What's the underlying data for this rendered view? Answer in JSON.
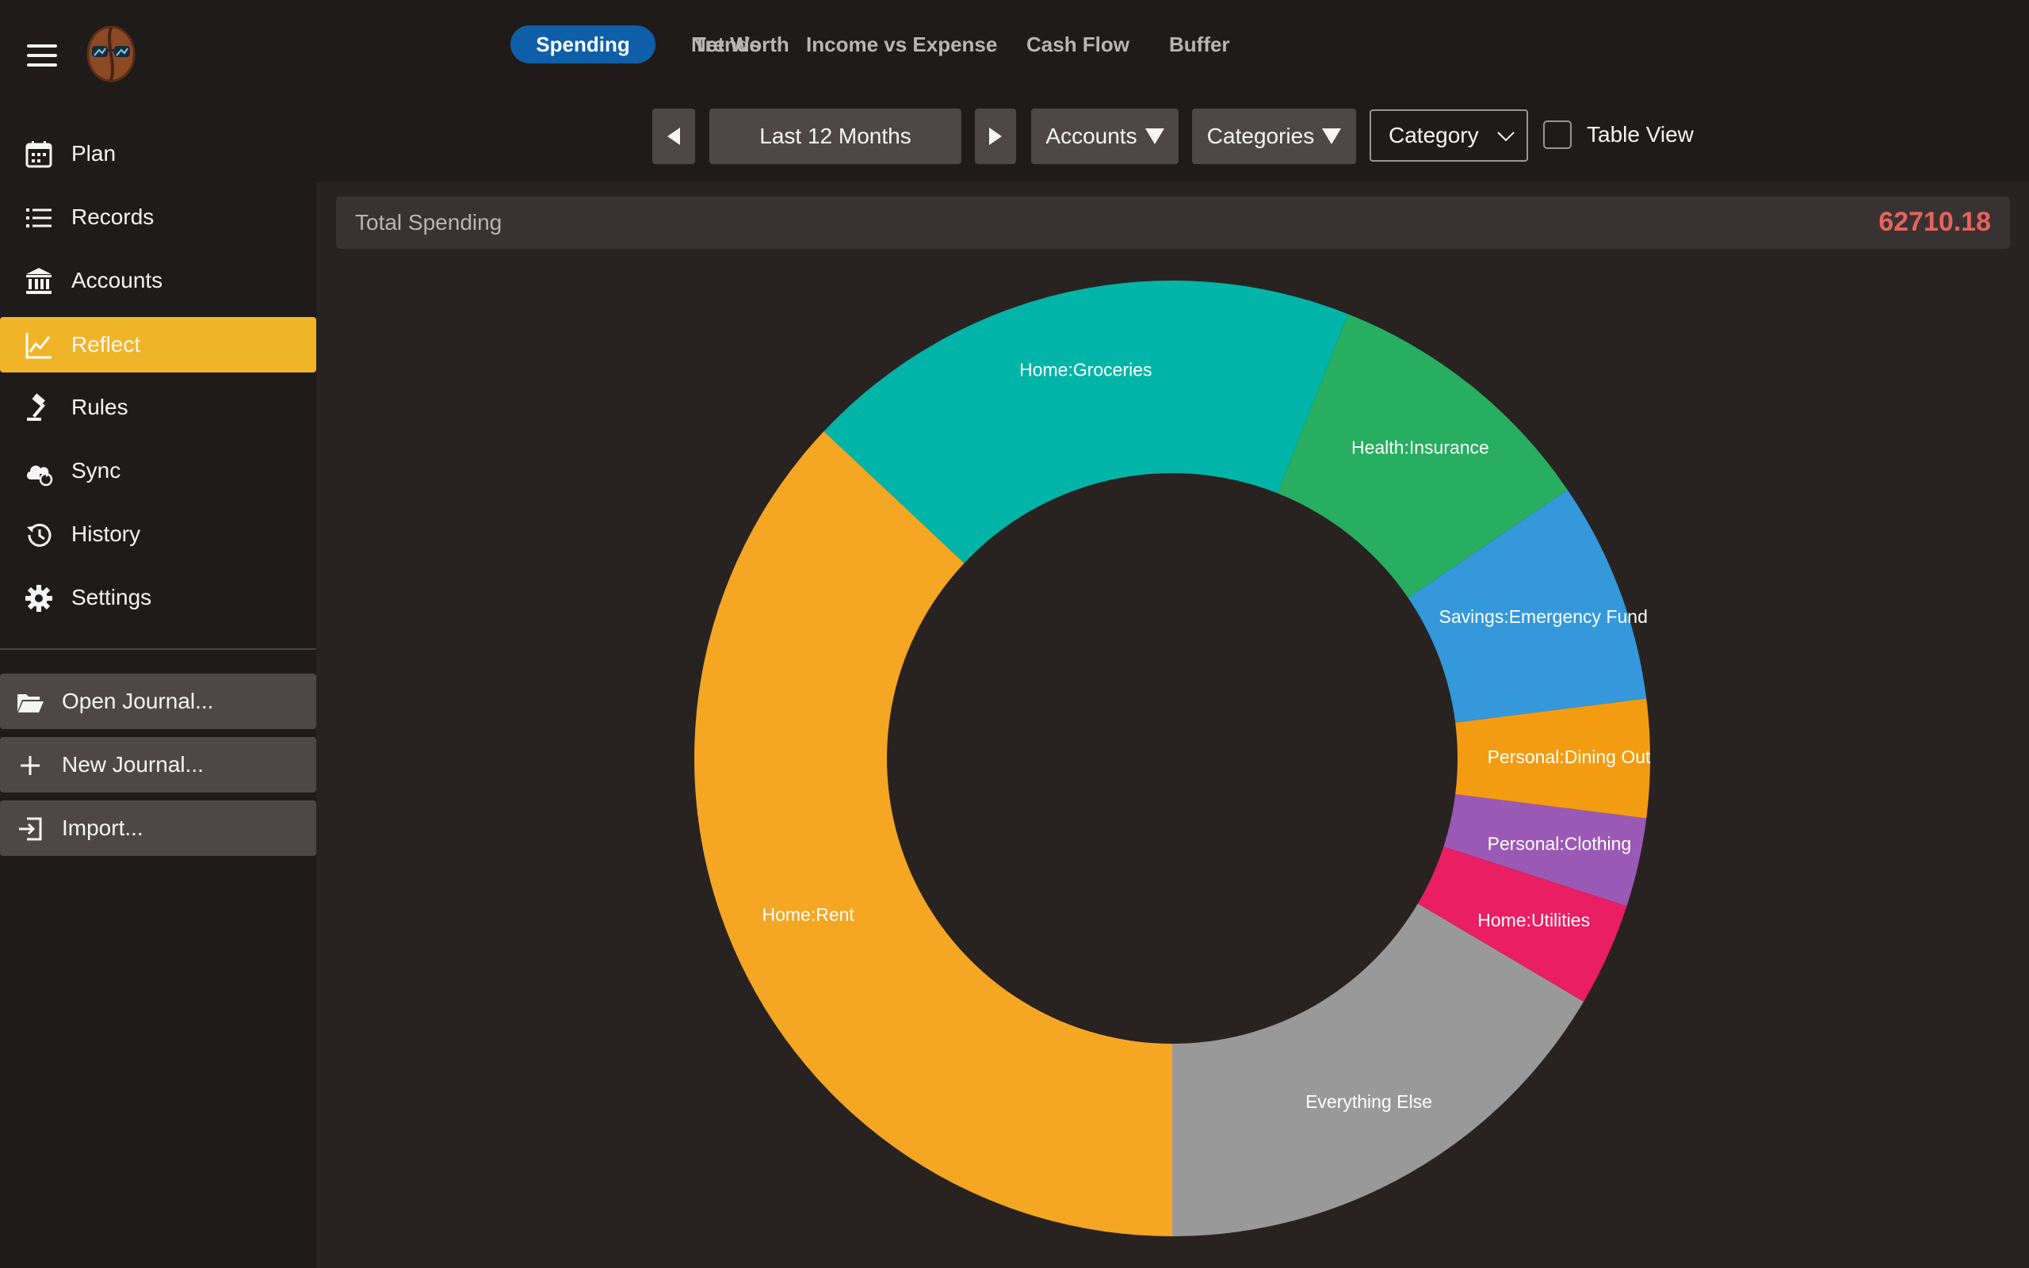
{
  "sidebar": {
    "items": [
      {
        "label": "Plan",
        "icon": "calendar-icon"
      },
      {
        "label": "Records",
        "icon": "list-icon"
      },
      {
        "label": "Accounts",
        "icon": "bank-icon"
      },
      {
        "label": "Reflect",
        "icon": "chart-line-icon",
        "active": true
      },
      {
        "label": "Rules",
        "icon": "gavel-icon"
      },
      {
        "label": "Sync",
        "icon": "cloud-sync-icon"
      },
      {
        "label": "History",
        "icon": "history-icon"
      },
      {
        "label": "Settings",
        "icon": "gear-icon"
      }
    ],
    "actions": [
      {
        "label": "Open Journal...",
        "icon": "folder-open-icon"
      },
      {
        "label": "New Journal...",
        "icon": "plus-icon"
      },
      {
        "label": "Import...",
        "icon": "import-icon"
      }
    ]
  },
  "tabs": [
    {
      "label": "Net Worth"
    },
    {
      "label": "Spending",
      "active": true
    },
    {
      "label": "Trends"
    },
    {
      "label": "Income vs Expense"
    },
    {
      "label": "Cash Flow"
    },
    {
      "label": "Buffer"
    }
  ],
  "controls": {
    "period": "Last 12 Months",
    "accounts_label": "Accounts",
    "categories_label": "Categories",
    "group_by": "Category",
    "table_view_label": "Table View",
    "table_view_checked": false
  },
  "summary": {
    "label": "Total Spending",
    "value": "62710.18",
    "value_color": "#e8625e"
  },
  "colors": {
    "accent": "#f0b429",
    "tab_active": "#0f5fa8"
  },
  "chart_data": {
    "type": "pie",
    "donut": true,
    "start_angle_deg": 90,
    "direction": "clockwise",
    "slices": [
      {
        "label": "Home:Rent",
        "value": 37.0,
        "color": "#f5a623"
      },
      {
        "label": "Home:Groceries",
        "value": 19.0,
        "color": "#00b5a8"
      },
      {
        "label": "Health:Insurance",
        "value": 9.5,
        "color": "#27ae60"
      },
      {
        "label": "Savings:Emergency Fund",
        "value": 7.5,
        "color": "#3498db"
      },
      {
        "label": "Personal:Dining Out",
        "value": 4.0,
        "color": "#f39c12"
      },
      {
        "label": "Personal:Clothing",
        "value": 3.0,
        "color": "#9b59b6"
      },
      {
        "label": "Home:Utilities",
        "value": 3.5,
        "color": "#e91e63"
      },
      {
        "label": "Everything Else",
        "value": 16.5,
        "color": "#999999"
      }
    ]
  }
}
